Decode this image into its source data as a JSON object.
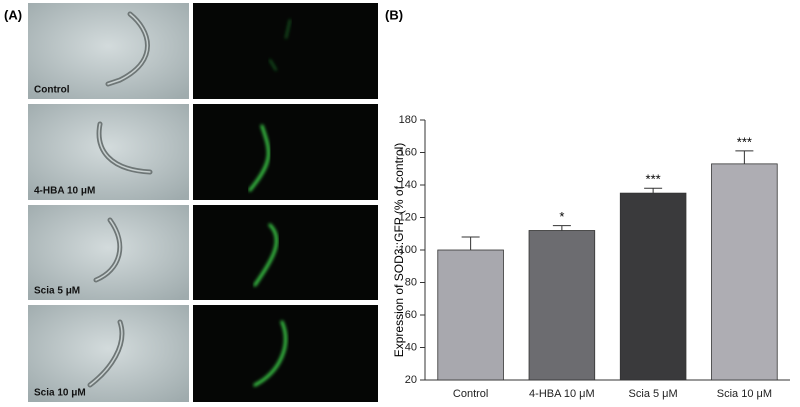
{
  "panel_a": {
    "label": "(A)",
    "images": [
      "Control",
      "4-HBA 10 μM",
      "Scia 5 μM",
      "Scia 10 μM"
    ]
  },
  "chart_data": {
    "type": "bar",
    "panel_label": "(B)",
    "y_label": "Expression of SOD3::GFP (% of control)",
    "categories": [
      "Control",
      "4-HBA 10 μM",
      "Scia 5 μM",
      "Scia 10 μM"
    ],
    "values": [
      100,
      112,
      135,
      153
    ],
    "errors": [
      8,
      3,
      3,
      8
    ],
    "annotations": [
      null,
      "*",
      "***",
      "***"
    ],
    "colors": [
      "#a8a8ae",
      "#6c6c70",
      "#3a3a3c",
      "#aeadb3"
    ],
    "ylim": [
      20,
      180
    ],
    "yticks": [
      20,
      40,
      60,
      80,
      100,
      120,
      140,
      160,
      180
    ]
  }
}
